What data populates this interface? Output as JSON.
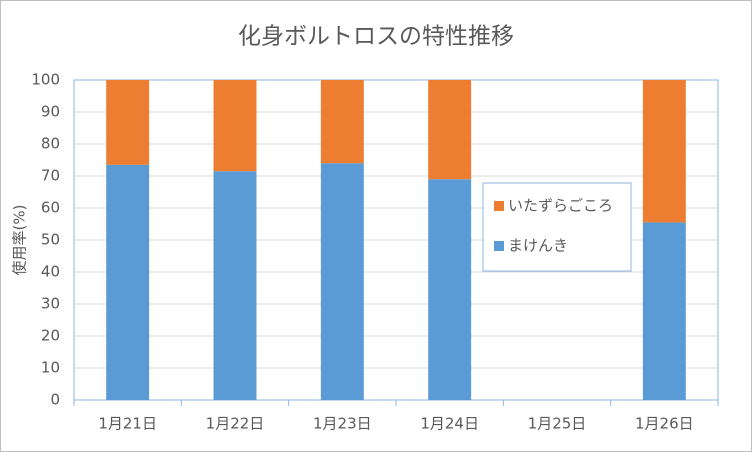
{
  "chart_data": {
    "type": "stacked_bar",
    "title": "化身ボルトロスの特性推移",
    "y_label": "使用率(%)",
    "categories": [
      "1月21日",
      "1月22日",
      "1月23日",
      "1月24日",
      "1月25日",
      "1月26日"
    ],
    "series": [
      {
        "name": "まけんき",
        "color": "#5b9bd5",
        "values": [
          73.5,
          71.5,
          74,
          69,
          null,
          55.5
        ]
      },
      {
        "name": "いたずらごころ",
        "color": "#ed7d31",
        "values": [
          26.5,
          28.5,
          26,
          31,
          null,
          44.5
        ]
      }
    ],
    "ylim": [
      0,
      100
    ],
    "yticks": [
      0,
      10,
      20,
      30,
      40,
      50,
      60,
      70,
      80,
      90,
      100
    ],
    "grid": true,
    "legend_position": "right"
  }
}
